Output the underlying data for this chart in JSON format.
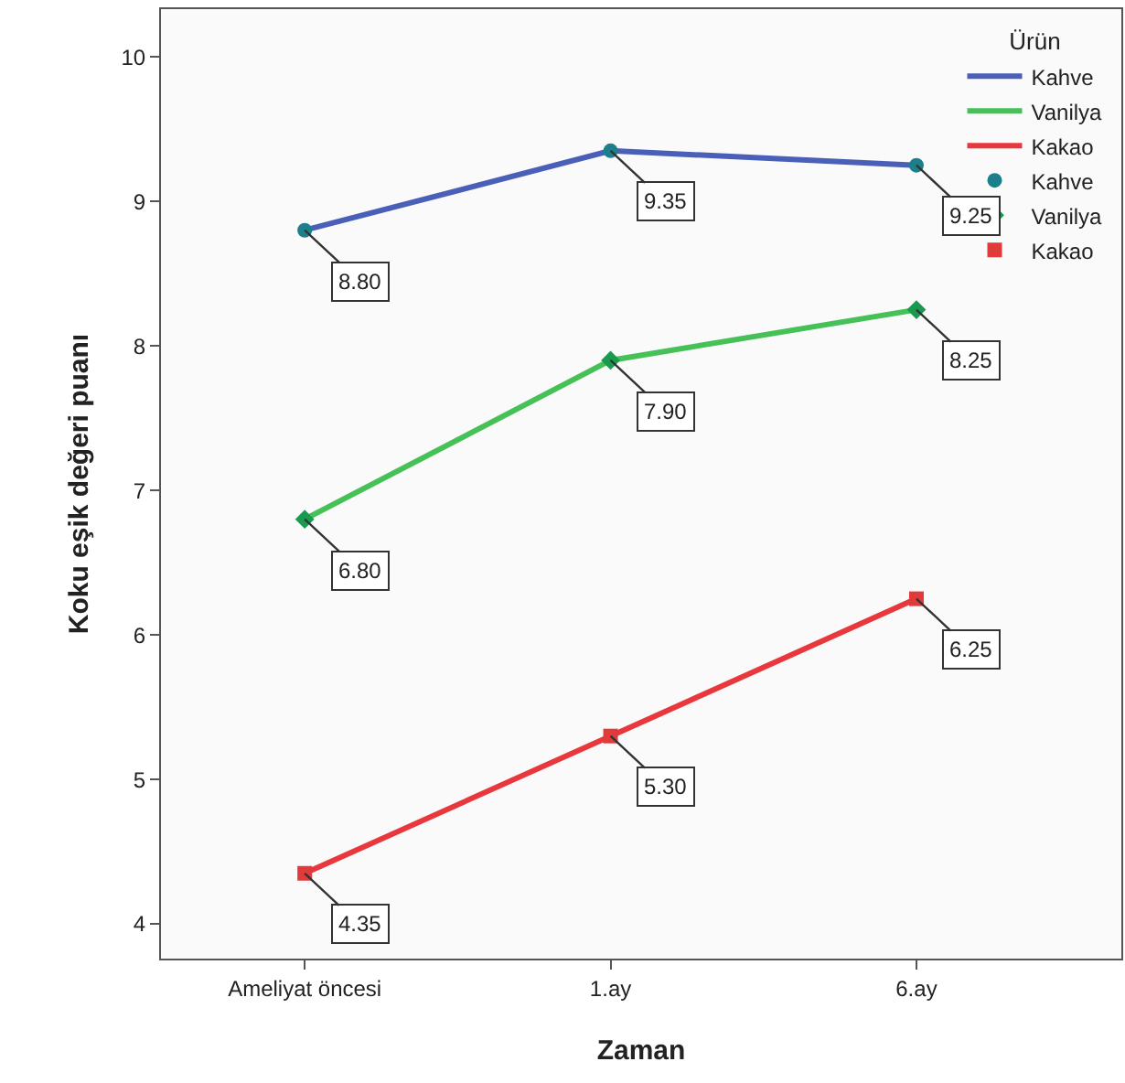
{
  "chart_data": {
    "type": "line",
    "xlabel": "Zaman",
    "ylabel": "Koku eşik değeri puanı",
    "legend_title": "Ürün",
    "categories": [
      "Ameliyat öncesi",
      "1.ay",
      "6.ay"
    ],
    "series": [
      {
        "name": "Kahve",
        "color": "#4a5fb8",
        "values": [
          8.8,
          9.35,
          9.25
        ]
      },
      {
        "name": "Vanilya",
        "color": "#45c157",
        "values": [
          6.8,
          7.9,
          8.25
        ]
      },
      {
        "name": "Kakao",
        "color": "#e8383d",
        "values": [
          4.35,
          5.3,
          6.25
        ]
      },
      {
        "name": "Kahve",
        "type": "scatter",
        "marker": "circle",
        "color": "#1e7f8c",
        "values": [
          8.8,
          9.35,
          9.25
        ],
        "value_labels": [
          "8.80",
          "9.35",
          "9.25"
        ]
      },
      {
        "name": "Vanilya",
        "type": "scatter",
        "marker": "diamond",
        "color": "#1a9a4f",
        "values": [
          6.8,
          7.9,
          8.25
        ],
        "value_labels": [
          "6.80",
          "7.90",
          "8.25"
        ]
      },
      {
        "name": "Kakao",
        "type": "scatter",
        "marker": "square",
        "color": "#e03a3a",
        "values": [
          4.35,
          5.3,
          6.25
        ],
        "value_labels": [
          "4.35",
          "5.30",
          "6.25"
        ]
      }
    ],
    "ylim": [
      3.76,
      10.33
    ],
    "yticks": [
      4,
      5,
      6,
      7,
      8,
      9,
      10
    ],
    "grid": false,
    "legend": "top right"
  }
}
